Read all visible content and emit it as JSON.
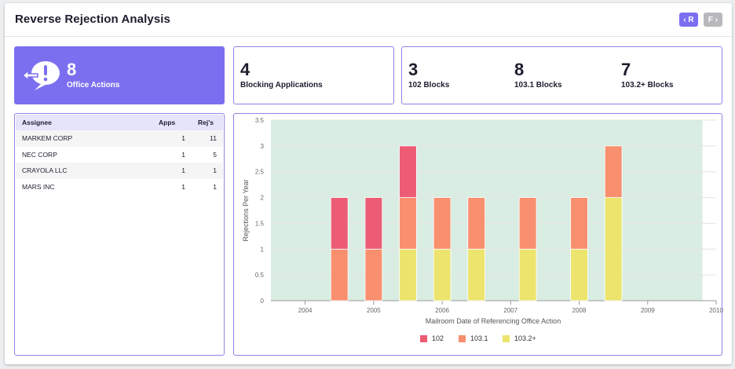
{
  "header": {
    "title": "Reverse Rejection Analysis",
    "prev_label": "‹ R",
    "next_label": "F ›"
  },
  "stats": {
    "office_actions": {
      "value": "8",
      "label": "Office Actions",
      "icon": "speech-bubble-alert-icon"
    },
    "blocking": {
      "value": "4",
      "label": "Blocking Applications"
    },
    "blocks": [
      {
        "value": "3",
        "label": "102 Blocks"
      },
      {
        "value": "8",
        "label": "103.1 Blocks"
      },
      {
        "value": "7",
        "label": "103.2+ Blocks"
      }
    ]
  },
  "assignees": {
    "columns": [
      "Assignee",
      "Apps",
      "Rej's"
    ],
    "rows": [
      {
        "name": "MARKEM CORP",
        "apps": "1",
        "rejs": "11"
      },
      {
        "name": "NEC CORP",
        "apps": "1",
        "rejs": "5"
      },
      {
        "name": "CRAYOLA LLC",
        "apps": "1",
        "rejs": "1"
      },
      {
        "name": "MARS INC",
        "apps": "1",
        "rejs": "1"
      }
    ]
  },
  "chart_data": {
    "type": "bar",
    "stacked": true,
    "xlabel": "Mailroom Date of Referencing Office Action",
    "ylabel": "Rejections Per Year",
    "ylim": [
      0,
      3.5
    ],
    "y_ticks": [
      0,
      0.5,
      1,
      1.5,
      2,
      2.5,
      3,
      3.5
    ],
    "y_tick_labels": [
      "0",
      "0.5",
      "1",
      "1.5",
      "2",
      "2.5",
      "3",
      "3.5"
    ],
    "xlim": [
      2003.5,
      2010
    ],
    "x_ticks": [
      2004,
      2005,
      2006,
      2007,
      2008,
      2009,
      2010
    ],
    "plot_band": [
      2003.5,
      2009.8
    ],
    "bar_width_years": 0.25,
    "x": [
      2004.5,
      2005,
      2005.5,
      2006,
      2006.5,
      2007.25,
      2008,
      2008.5
    ],
    "series": [
      {
        "name": "103.2+",
        "color": "#ede46d",
        "values": [
          0,
          0,
          1,
          1,
          1,
          1,
          1,
          2
        ]
      },
      {
        "name": "103.1",
        "color": "#f88f6e",
        "values": [
          1,
          1,
          1,
          1,
          1,
          1,
          1,
          1
        ]
      },
      {
        "name": "102",
        "color": "#ec5d75",
        "values": [
          1,
          1,
          1,
          0,
          0,
          0,
          0,
          0
        ]
      }
    ],
    "legend": [
      "102",
      "103.1",
      "103.2+"
    ],
    "legend_colors": [
      "#ec5d75",
      "#f88f6e",
      "#ede46d"
    ],
    "plot_background": "#d9ede2",
    "grid": true,
    "legend_position": "bottom"
  }
}
